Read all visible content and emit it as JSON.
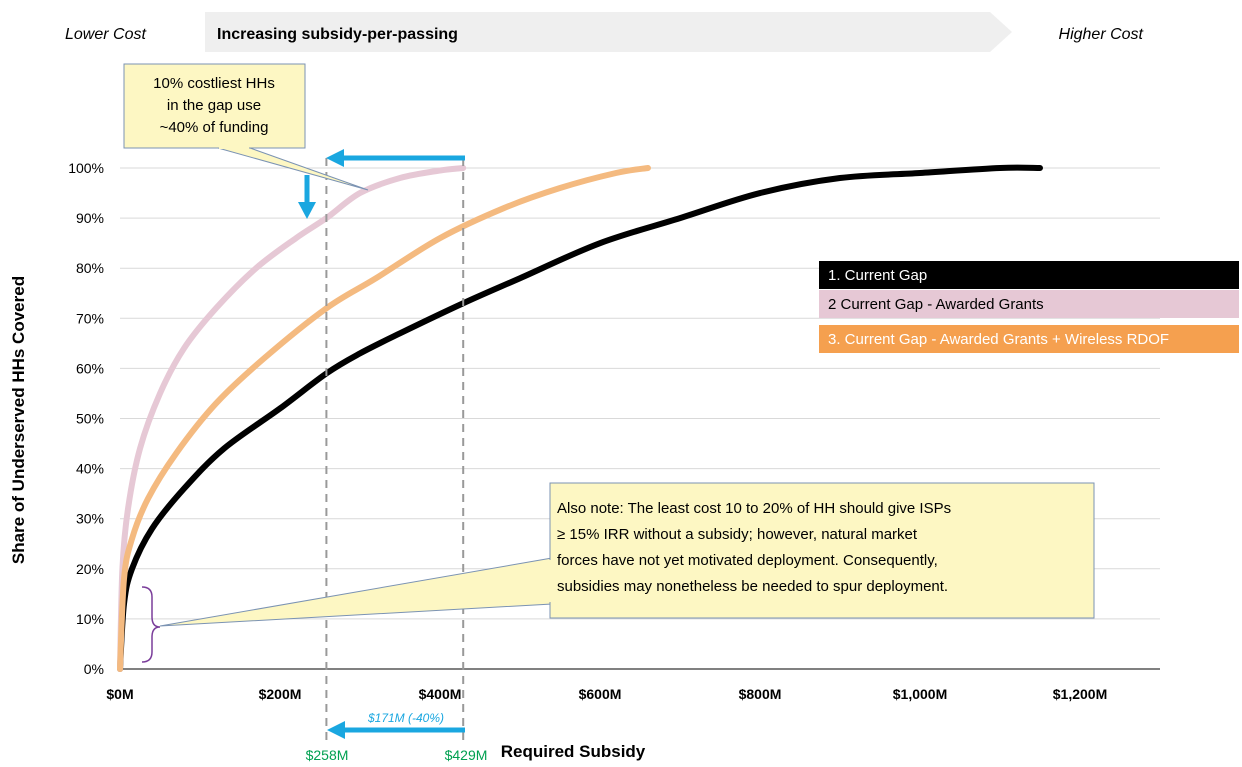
{
  "banner": {
    "left_label": "Lower Cost",
    "center_label": "Increasing subsidy-per-passing",
    "right_label": "Higher Cost"
  },
  "chart_data": {
    "type": "line",
    "title": "",
    "xlabel": "Required Subsidy",
    "ylabel": "Share of Underserved HHs Covered",
    "xlim": [
      0,
      1300
    ],
    "ylim": [
      0,
      100
    ],
    "x_ticks": [
      "$0M",
      "$200M",
      "$400M",
      "$600M",
      "$800M",
      "$1,000M",
      "$1,200M"
    ],
    "y_ticks": [
      "0%",
      "10%",
      "20%",
      "30%",
      "40%",
      "50%",
      "60%",
      "70%",
      "80%",
      "90%",
      "100%"
    ],
    "grid": "horizontal",
    "legend_position": "right",
    "series": [
      {
        "name": "1. Current Gap",
        "color": "#000000",
        "text_color": "#ffffff",
        "x": [
          0,
          5,
          15,
          40,
          80,
          130,
          200,
          258,
          300,
          350,
          429,
          500,
          600,
          700,
          800,
          900,
          1000,
          1100,
          1150
        ],
        "y": [
          0,
          13,
          20,
          28,
          36,
          44,
          52,
          59,
          63,
          67,
          73,
          78,
          85,
          90,
          95,
          98,
          99,
          100,
          100
        ]
      },
      {
        "name": "2 Current Gap - Awarded Grants",
        "color": "#e6c8d5",
        "text_color": "#000000",
        "x": [
          0,
          3,
          10,
          25,
          50,
          80,
          120,
          170,
          220,
          258,
          300,
          350,
          400,
          429
        ],
        "y": [
          0,
          20,
          32,
          44,
          55,
          64,
          72,
          80,
          86,
          90,
          95,
          98,
          99.5,
          100
        ]
      },
      {
        "name": "3. Current Gap - Awarded Grants + Wireless RDOF",
        "color": "#f4ba80",
        "text_color": "#ffffff",
        "legend_color": "#f5a04f",
        "x": [
          0,
          5,
          15,
          35,
          70,
          120,
          180,
          258,
          320,
          400,
          480,
          550,
          620,
          660
        ],
        "y": [
          0,
          18,
          26,
          34,
          43,
          53,
          62,
          72,
          78,
          86,
          92,
          96,
          99,
          100
        ]
      }
    ],
    "annotations": {
      "top_callout": [
        "10% costliest HHs",
        "in the gap use",
        "~40% of funding"
      ],
      "bottom_callout": [
        "Also note: The least cost 10 to 20% of HH should give ISPs",
        "≥ 15% IRR without a subsidy; however, natural market",
        "forces have not yet motivated deployment. Consequently,",
        "subsidies may nonetheless be needed to spur deployment."
      ],
      "left_marker": "$258M",
      "right_marker": "$429M",
      "difference": "$171M (-40%)",
      "marker_x": [
        258,
        429
      ]
    }
  }
}
